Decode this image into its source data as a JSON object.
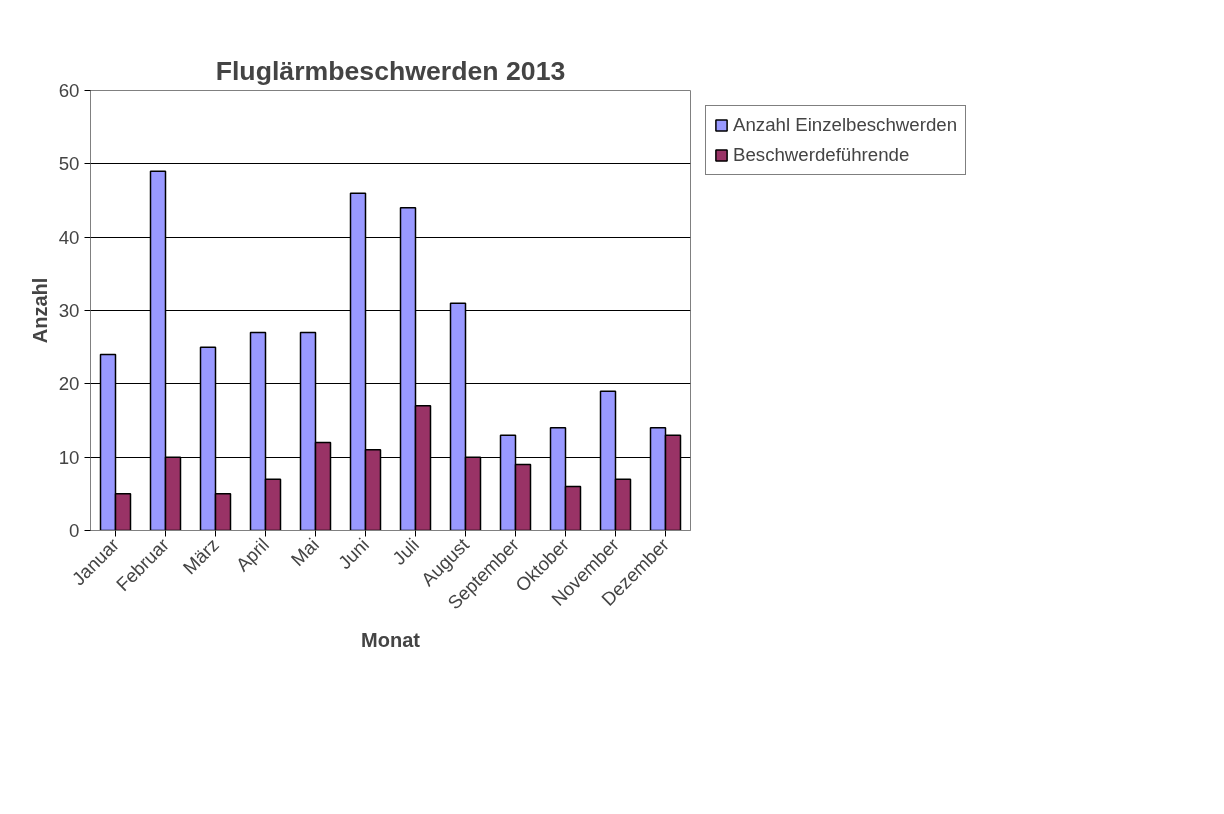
{
  "chart_data": {
    "type": "bar",
    "title": "Fluglärmbeschwerden 2013",
    "xlabel": "Monat",
    "ylabel": "Anzahl",
    "categories": [
      "Januar",
      "Februar",
      "März",
      "April",
      "Mai",
      "Juni",
      "Juli",
      "August",
      "September",
      "Oktober",
      "November",
      "Dezember"
    ],
    "series": [
      {
        "name": "Anzahl Einzelbeschwerden",
        "color": "#9999ff",
        "values": [
          24,
          49,
          25,
          27,
          27,
          46,
          44,
          31,
          13,
          14,
          19,
          14
        ]
      },
      {
        "name": "Beschwerdeführende",
        "color": "#993366",
        "values": [
          5,
          10,
          5,
          7,
          12,
          11,
          17,
          10,
          9,
          6,
          7,
          13
        ]
      }
    ],
    "ylim": [
      0,
      60
    ],
    "yticks": [
      0,
      10,
      20,
      30,
      40,
      50,
      60
    ],
    "grid": "y",
    "legend": "right"
  }
}
